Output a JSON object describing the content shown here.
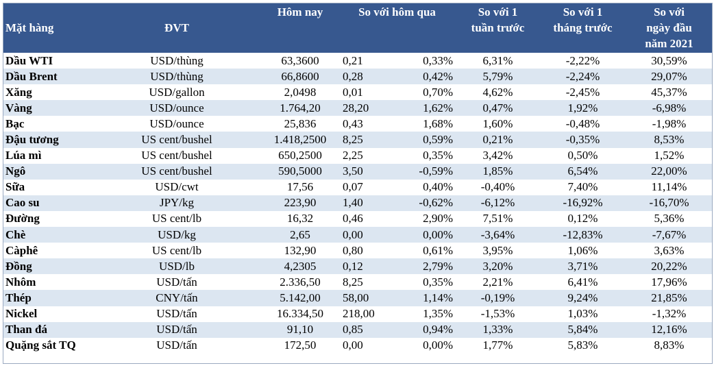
{
  "header": {
    "col_item": "Mặt hàng",
    "col_unit": "ĐVT",
    "col_today": "Hôm nay",
    "col_vs_yesterday": "So với hôm qua",
    "col_vs_week": [
      "So với 1",
      "tuần trước"
    ],
    "col_vs_month": [
      "So với 1",
      "tháng trước"
    ],
    "col_vs_year": [
      "So với",
      "ngày đầu",
      "năm 2021"
    ]
  },
  "rows": [
    {
      "item": "Dầu WTI",
      "unit": "USD/thùng",
      "today": "63,3600",
      "chg": "0,21",
      "chg_pct": "0,33%",
      "week": "6,31%",
      "month": "-2,22%",
      "ytd": "30,59%"
    },
    {
      "item": "Dầu Brent",
      "unit": "USD/thùng",
      "today": "66,8600",
      "chg": "0,28",
      "chg_pct": "0,42%",
      "week": "5,79%",
      "month": "-2,24%",
      "ytd": "29,07%"
    },
    {
      "item": "Xăng",
      "unit": "USD/gallon",
      "today": "2,0498",
      "chg": "0,01",
      "chg_pct": "0,70%",
      "week": "4,62%",
      "month": "-2,45%",
      "ytd": "45,37%"
    },
    {
      "item": "Vàng",
      "unit": "USD/ounce",
      "today": "1.764,20",
      "chg": "28,20",
      "chg_pct": "1,62%",
      "week": "0,47%",
      "month": "1,92%",
      "ytd": "-6,98%"
    },
    {
      "item": "Bạc",
      "unit": "USD/ounce",
      "today": "25,836",
      "chg": "0,43",
      "chg_pct": "1,68%",
      "week": "1,60%",
      "month": "-0,48%",
      "ytd": "-1,98%"
    },
    {
      "item": "Đậu tương",
      "unit": "US cent/bushel",
      "today": "1.418,2500",
      "chg": "8,25",
      "chg_pct": "0,59%",
      "week": "0,21%",
      "month": "-0,35%",
      "ytd": "8,53%"
    },
    {
      "item": "Lúa mì",
      "unit": "US cent/bushel",
      "today": "650,2500",
      "chg": "2,25",
      "chg_pct": "0,35%",
      "week": "3,42%",
      "month": "0,50%",
      "ytd": "1,52%"
    },
    {
      "item": "Ngô",
      "unit": "US cent/bushel",
      "today": "590,5000",
      "chg": "3,50",
      "chg_pct": "-0,59%",
      "week": "1,85%",
      "month": "6,54%",
      "ytd": "22,00%"
    },
    {
      "item": "Sữa",
      "unit": "USD/cwt",
      "today": "17,56",
      "chg": "0,07",
      "chg_pct": "0,40%",
      "week": "-0,40%",
      "month": "7,40%",
      "ytd": "11,14%"
    },
    {
      "item": "Cao su",
      "unit": "JPY/kg",
      "today": "223,90",
      "chg": "1,40",
      "chg_pct": "-0,62%",
      "week": "-6,12%",
      "month": "-16,92%",
      "ytd": "-16,70%"
    },
    {
      "item": "Đường",
      "unit": "US cent/lb",
      "today": "16,32",
      "chg": "0,46",
      "chg_pct": "2,90%",
      "week": "7,51%",
      "month": "0,12%",
      "ytd": "5,36%"
    },
    {
      "item": "Chè",
      "unit": "USD/kg",
      "today": "2,65",
      "chg": "0,00",
      "chg_pct": "0,00%",
      "week": "-3,64%",
      "month": "-12,83%",
      "ytd": "-7,67%"
    },
    {
      "item": "Càphê",
      "unit": "US cent/lb",
      "today": "132,90",
      "chg": "0,80",
      "chg_pct": "0,61%",
      "week": "3,95%",
      "month": "1,06%",
      "ytd": "3,63%"
    },
    {
      "item": "Đồng",
      "unit": "USD/lb",
      "today": "4,2305",
      "chg": "0,12",
      "chg_pct": "2,79%",
      "week": "3,20%",
      "month": "3,71%",
      "ytd": "20,22%"
    },
    {
      "item": "Nhôm",
      "unit": "USD/tấn",
      "today": "2.336,50",
      "chg": "8,25",
      "chg_pct": "0,35%",
      "week": "2,21%",
      "month": "6,41%",
      "ytd": "17,96%"
    },
    {
      "item": "Thép",
      "unit": "CNY/tấn",
      "today": "5.142,00",
      "chg": "58,00",
      "chg_pct": "1,14%",
      "week": "-0,19%",
      "month": "9,24%",
      "ytd": "21,85%"
    },
    {
      "item": "Nickel",
      "unit": "USD/tấn",
      "today": "16.334,50",
      "chg": "218,00",
      "chg_pct": "1,35%",
      "week": "-1,53%",
      "month": "1,03%",
      "ytd": "-1,32%"
    },
    {
      "item": "Than đá",
      "unit": "USD/tấn",
      "today": "91,10",
      "chg": "0,85",
      "chg_pct": "0,94%",
      "week": "1,33%",
      "month": "5,84%",
      "ytd": "12,16%"
    },
    {
      "item": "Quặng sắt TQ",
      "unit": "USD/tấn",
      "today": "172,50",
      "chg": "0,00",
      "chg_pct": "0,00%",
      "week": "1,77%",
      "month": "5,83%",
      "ytd": "8,83%"
    }
  ],
  "colors": {
    "header_bg": "#37588f",
    "header_text": "#ffffff",
    "stripe": "#dce6f1"
  }
}
